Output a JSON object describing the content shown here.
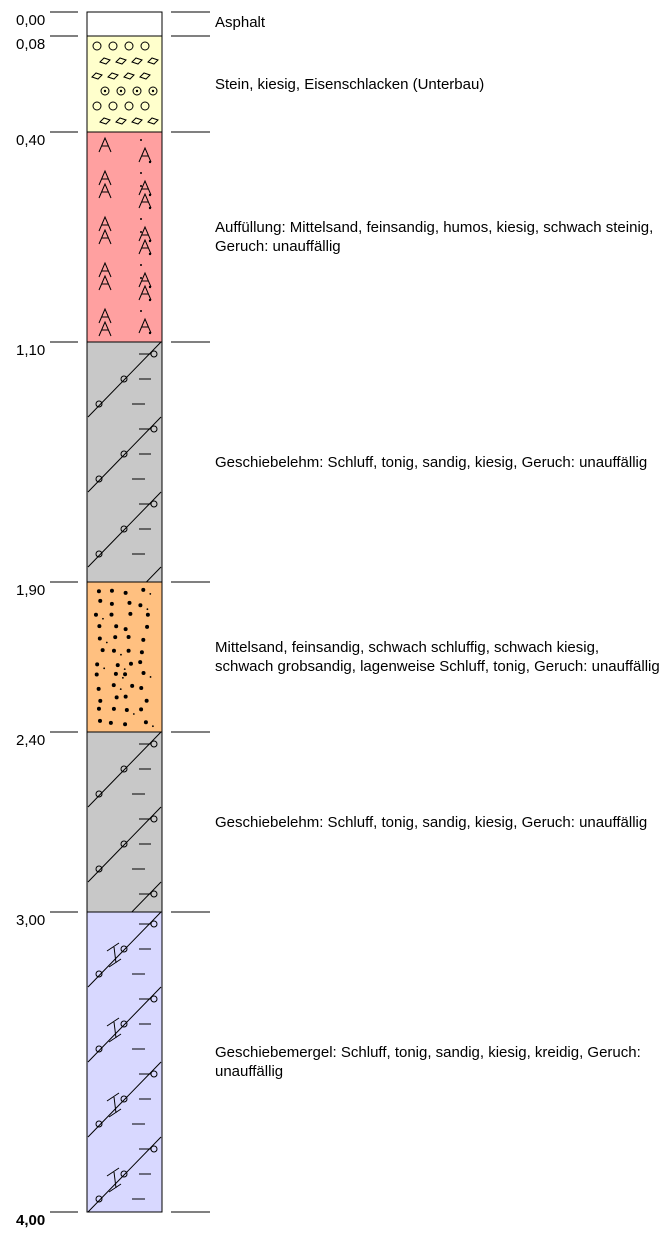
{
  "profile": {
    "depth_unit_max": 4.0,
    "final_depth": "4,00",
    "layers": [
      {
        "top": 0.0,
        "bottom": 0.08,
        "top_label": "0,00",
        "fill": "#ffffff",
        "pattern": "none",
        "description": "Asphalt"
      },
      {
        "top": 0.08,
        "bottom": 0.4,
        "top_label": "0,08",
        "fill": "#ffffcc",
        "pattern": "gravel",
        "description": "Stein, kiesig, Eisenschlacken (Unterbau)"
      },
      {
        "top": 0.4,
        "bottom": 1.1,
        "top_label": "0,40",
        "fill": "#ffa0a0",
        "pattern": "fill",
        "description": "Auffüllung: Mittelsand, feinsandig, humos, kiesig, schwach steinig, Geruch: unauffällig"
      },
      {
        "top": 1.1,
        "bottom": 1.9,
        "top_label": "1,10",
        "fill": "#c8c8c8",
        "pattern": "till",
        "description": "Geschiebelehm: Schluff, tonig, sandig, kiesig, Geruch: unauffällig"
      },
      {
        "top": 1.9,
        "bottom": 2.4,
        "top_label": "1,90",
        "fill": "#ffc080",
        "pattern": "sand",
        "description": "Mittelsand, feinsandig, schwach schluffig, schwach kiesig, schwach grobsandig, lagenweise Schluff, tonig, Geruch: unauffällig"
      },
      {
        "top": 2.4,
        "bottom": 3.0,
        "top_label": "2,40",
        "fill": "#c8c8c8",
        "pattern": "till",
        "description": "Geschiebelehm: Schluff, tonig, sandig, kiesig, Geruch: unauffällig"
      },
      {
        "top": 3.0,
        "bottom": 4.0,
        "top_label": "3,00",
        "fill": "#d8d8ff",
        "pattern": "marl",
        "description": "Geschiebemergel: Schluff, tonig, sandig, kiesig, kreidig, Geruch: unauffällig"
      }
    ]
  }
}
